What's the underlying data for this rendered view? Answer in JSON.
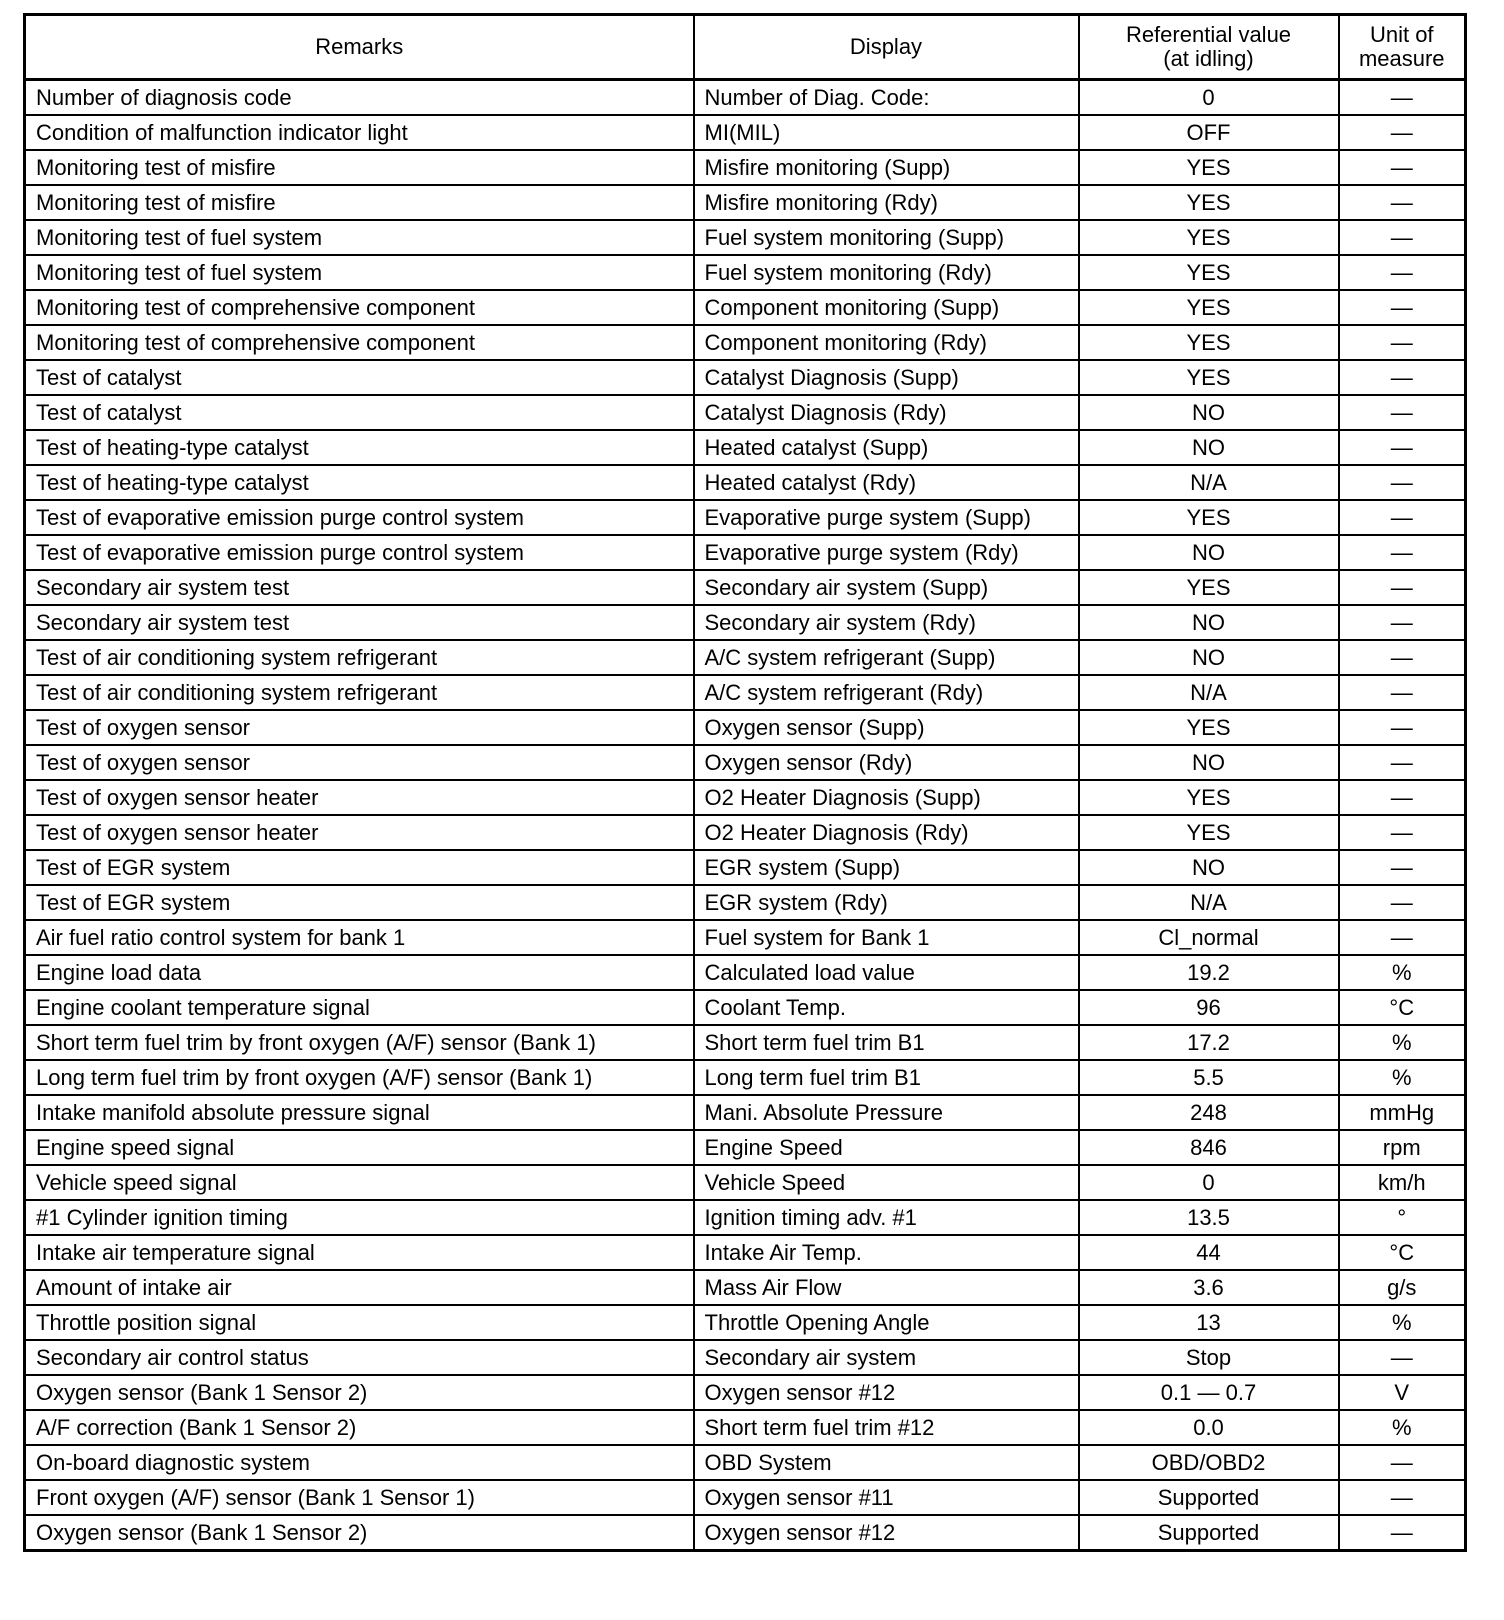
{
  "headers": {
    "remarks": "Remarks",
    "display": "Display",
    "ref_line1": "Referential value",
    "ref_line2": "(at idling)",
    "unit_line1": "Unit of",
    "unit_line2": "measure"
  },
  "rows": [
    {
      "remarks": "Number of diagnosis code",
      "display": "Number of Diag. Code:",
      "value": "0",
      "unit": "—"
    },
    {
      "remarks": "Condition of malfunction indicator light",
      "display": "MI(MIL)",
      "value": "OFF",
      "unit": "—"
    },
    {
      "remarks": "Monitoring test of misfire",
      "display": "Misfire monitoring (Supp)",
      "value": "YES",
      "unit": "—"
    },
    {
      "remarks": "Monitoring test of misfire",
      "display": "Misfire monitoring (Rdy)",
      "value": "YES",
      "unit": "—"
    },
    {
      "remarks": "Monitoring test of fuel system",
      "display": "Fuel system monitoring (Supp)",
      "value": "YES",
      "unit": "—"
    },
    {
      "remarks": "Monitoring test of fuel system",
      "display": "Fuel system monitoring (Rdy)",
      "value": "YES",
      "unit": "—"
    },
    {
      "remarks": "Monitoring test of comprehensive component",
      "display": "Component monitoring (Supp)",
      "value": "YES",
      "unit": "—"
    },
    {
      "remarks": "Monitoring test of comprehensive component",
      "display": "Component monitoring (Rdy)",
      "value": "YES",
      "unit": "—"
    },
    {
      "remarks": "Test of catalyst",
      "display": "Catalyst Diagnosis (Supp)",
      "value": "YES",
      "unit": "—"
    },
    {
      "remarks": "Test of catalyst",
      "display": "Catalyst Diagnosis (Rdy)",
      "value": "NO",
      "unit": "—"
    },
    {
      "remarks": "Test of heating-type catalyst",
      "display": "Heated catalyst (Supp)",
      "value": "NO",
      "unit": "—"
    },
    {
      "remarks": "Test of heating-type catalyst",
      "display": "Heated catalyst (Rdy)",
      "value": "N/A",
      "unit": "—"
    },
    {
      "remarks": "Test of evaporative emission purge control system",
      "display": "Evaporative purge system (Supp)",
      "value": "YES",
      "unit": "—"
    },
    {
      "remarks": "Test of evaporative emission purge control system",
      "display": "Evaporative purge system (Rdy)",
      "value": "NO",
      "unit": "—"
    },
    {
      "remarks": "Secondary air system test",
      "display": "Secondary air system (Supp)",
      "value": "YES",
      "unit": "—"
    },
    {
      "remarks": "Secondary air system test",
      "display": "Secondary air system (Rdy)",
      "value": "NO",
      "unit": "—"
    },
    {
      "remarks": "Test of air conditioning system refrigerant",
      "display": "A/C system refrigerant (Supp)",
      "value": "NO",
      "unit": "—"
    },
    {
      "remarks": "Test of air conditioning system refrigerant",
      "display": "A/C system refrigerant (Rdy)",
      "value": "N/A",
      "unit": "—"
    },
    {
      "remarks": "Test of oxygen sensor",
      "display": "Oxygen sensor (Supp)",
      "value": "YES",
      "unit": "—"
    },
    {
      "remarks": "Test of oxygen sensor",
      "display": "Oxygen sensor (Rdy)",
      "value": "NO",
      "unit": "—"
    },
    {
      "remarks": "Test of oxygen sensor heater",
      "display": "O2 Heater Diagnosis (Supp)",
      "value": "YES",
      "unit": "—"
    },
    {
      "remarks": "Test of oxygen sensor heater",
      "display": "O2 Heater Diagnosis (Rdy)",
      "value": "YES",
      "unit": "—"
    },
    {
      "remarks": "Test of EGR system",
      "display": "EGR system (Supp)",
      "value": "NO",
      "unit": "—"
    },
    {
      "remarks": "Test of EGR system",
      "display": "EGR system (Rdy)",
      "value": "N/A",
      "unit": "—"
    },
    {
      "remarks": "Air fuel ratio control system for bank 1",
      "display": "Fuel system for Bank 1",
      "value": "Cl_normal",
      "unit": "—"
    },
    {
      "remarks": "Engine load data",
      "display": "Calculated load value",
      "value": "19.2",
      "unit": "%"
    },
    {
      "remarks": "Engine coolant temperature signal",
      "display": "Coolant Temp.",
      "value": "96",
      "unit": "°C"
    },
    {
      "remarks": "Short term fuel trim by front oxygen (A/F) sensor (Bank 1)",
      "display": "Short term fuel trim B1",
      "value": "17.2",
      "unit": "%"
    },
    {
      "remarks": "Long term fuel trim by front oxygen (A/F) sensor (Bank 1)",
      "display": "Long term fuel trim B1",
      "value": "5.5",
      "unit": "%"
    },
    {
      "remarks": "Intake manifold absolute pressure signal",
      "display": "Mani. Absolute Pressure",
      "value": "248",
      "unit": "mmHg"
    },
    {
      "remarks": "Engine speed signal",
      "display": "Engine Speed",
      "value": "846",
      "unit": "rpm"
    },
    {
      "remarks": "Vehicle speed signal",
      "display": "Vehicle Speed",
      "value": "0",
      "unit": "km/h"
    },
    {
      "remarks": "#1 Cylinder ignition timing",
      "display": "Ignition timing adv. #1",
      "value": "13.5",
      "unit": "°"
    },
    {
      "remarks": "Intake air temperature signal",
      "display": "Intake Air Temp.",
      "value": "44",
      "unit": "°C"
    },
    {
      "remarks": "Amount of intake air",
      "display": "Mass Air Flow",
      "value": "3.6",
      "unit": "g/s"
    },
    {
      "remarks": "Throttle position signal",
      "display": "Throttle Opening Angle",
      "value": "13",
      "unit": "%"
    },
    {
      "remarks": "Secondary air control status",
      "display": "Secondary air system",
      "value": "Stop",
      "unit": "—"
    },
    {
      "remarks": "Oxygen sensor (Bank 1 Sensor 2)",
      "display": "Oxygen sensor #12",
      "value": "0.1 — 0.7",
      "unit": "V"
    },
    {
      "remarks": "A/F correction (Bank 1 Sensor 2)",
      "display": "Short term fuel trim #12",
      "value": "0.0",
      "unit": "%"
    },
    {
      "remarks": "On-board diagnostic system",
      "display": "OBD System",
      "value": "OBD/OBD2",
      "unit": "—"
    },
    {
      "remarks": "Front oxygen (A/F) sensor (Bank 1 Sensor 1)",
      "display": "Oxygen sensor #11",
      "value": "Supported",
      "unit": "—"
    },
    {
      "remarks": "Oxygen sensor (Bank 1 Sensor 2)",
      "display": "Oxygen sensor #12",
      "value": "Supported",
      "unit": "—"
    }
  ]
}
